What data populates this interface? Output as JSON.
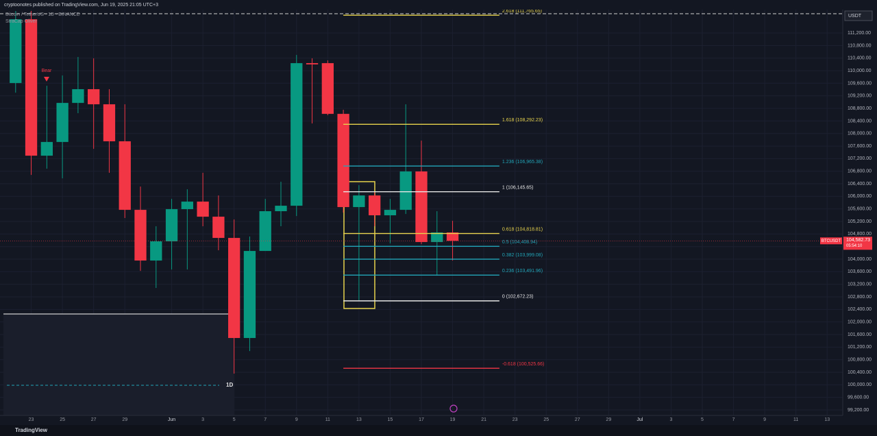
{
  "header": "cryptoonotes published on TradingView.com, Jun 19, 2025 21:05 UTC+3",
  "footer": "TradingView",
  "chart_data": {
    "type": "candlestick",
    "symbol_legend": "Bitcoin / TetherUS · 1D · BINANCE",
    "indicator_legend": "StraCap Oliver",
    "annotation": "Bear",
    "interval_label": "1D",
    "currency": "USDT",
    "up_color": "#089981",
    "down_color": "#f23645",
    "xlim": [
      "2025-05-21",
      "2025-07-14"
    ],
    "ylim": [
      99025,
      112250
    ],
    "grid": true,
    "dates": [
      "2025-05-22",
      "2025-05-23",
      "2025-05-24",
      "2025-05-25",
      "2025-05-26",
      "2025-05-27",
      "2025-05-28",
      "2025-05-29",
      "2025-05-30",
      "2025-05-31",
      "2025-06-01",
      "2025-06-02",
      "2025-06-03",
      "2025-06-04",
      "2025-06-05",
      "2025-06-06",
      "2025-06-07",
      "2025-06-08",
      "2025-06-09",
      "2025-06-10",
      "2025-06-11",
      "2025-06-12",
      "2025-06-13",
      "2025-06-14",
      "2025-06-15",
      "2025-06-16",
      "2025-06-17",
      "2025-06-18",
      "2025-06-19"
    ],
    "open": [
      109607,
      111636,
      107294,
      107730,
      108974,
      109411,
      108930,
      107752,
      105570,
      103956,
      104567,
      105592,
      105832,
      105352,
      104676,
      101490,
      104261,
      105527,
      105701,
      110240,
      110240,
      108625,
      105657,
      106028,
      105396,
      105570,
      106792,
      104545,
      104850
    ],
    "high": [
      111900,
      111900,
      109520,
      109847,
      110436,
      110393,
      109411,
      108930,
      106312,
      105047,
      105919,
      106225,
      106749,
      106028,
      105265,
      104720,
      105919,
      106465,
      110502,
      110393,
      110327,
      108756,
      106356,
      106138,
      105919,
      108930,
      107774,
      105527,
      105221
    ],
    "low": [
      109300,
      106683,
      106880,
      106574,
      108647,
      107512,
      106749,
      105309,
      103628,
      103083,
      103672,
      103672,
      105047,
      104283,
      100355,
      101075,
      104392,
      105047,
      105374,
      108320,
      108582,
      105483,
      102690,
      105047,
      104501,
      105439,
      104479,
      103475,
      103956
    ],
    "close": [
      111636,
      107294,
      107730,
      108974,
      109411,
      108930,
      107752,
      105570,
      103956,
      104567,
      105592,
      105832,
      105352,
      104676,
      101490,
      104261,
      105527,
      105701,
      110240,
      110200,
      108625,
      105657,
      106028,
      105396,
      105570,
      106792,
      104545,
      104850,
      104582.73
    ],
    "fib_levels": [
      {
        "value": 111765.65,
        "label": "2.618 (111,765.65)",
        "color": "#e8d44d"
      },
      {
        "value": 108292.23,
        "label": "1.618 (108,292.23)",
        "color": "#e8d44d"
      },
      {
        "value": 106965.38,
        "label": "1.236 (106,965.38)",
        "color": "#22a5b8"
      },
      {
        "value": 106145.65,
        "label": "1 (106,145.65)",
        "color": "#e6e6e6"
      },
      {
        "value": 104818.81,
        "label": "0.618 (104,818.81)",
        "color": "#e8d44d"
      },
      {
        "value": 104408.94,
        "label": "0.5 (104,408.94)",
        "color": "#22a5b8"
      },
      {
        "value": 103999.08,
        "label": "0.382 (103,999.08)",
        "color": "#22a5b8"
      },
      {
        "value": 103491.96,
        "label": "0.236 (103,491.96)",
        "color": "#22a5b8"
      },
      {
        "value": 102672.23,
        "label": "0 (102,672.23)",
        "color": "#e6e6e6"
      },
      {
        "value": 100525.66,
        "label": "-0.618 (100,525.66)",
        "color": "#f23645"
      }
    ],
    "fib_range": [
      "2025-06-12",
      "2025-06-22"
    ],
    "last_price": {
      "value": 104582.73,
      "label": "104,582.73",
      "symbol": "BTCUSDT",
      "countdown": "05:54:10"
    },
    "xticks": [
      {
        "value": "2025-05-23",
        "label": "23"
      },
      {
        "value": "2025-05-25",
        "label": "25"
      },
      {
        "value": "2025-05-27",
        "label": "27"
      },
      {
        "value": "2025-05-29",
        "label": "29"
      },
      {
        "value": "2025-06-01",
        "label": "Jun"
      },
      {
        "value": "2025-06-03",
        "label": "3"
      },
      {
        "value": "2025-06-05",
        "label": "5"
      },
      {
        "value": "2025-06-07",
        "label": "7"
      },
      {
        "value": "2025-06-09",
        "label": "9"
      },
      {
        "value": "2025-06-11",
        "label": "11"
      },
      {
        "value": "2025-06-13",
        "label": "13"
      },
      {
        "value": "2025-06-15",
        "label": "15"
      },
      {
        "value": "2025-06-17",
        "label": "17"
      },
      {
        "value": "2025-06-19",
        "label": "19"
      },
      {
        "value": "2025-06-21",
        "label": "21"
      },
      {
        "value": "2025-06-23",
        "label": "23"
      },
      {
        "value": "2025-06-25",
        "label": "25"
      },
      {
        "value": "2025-06-27",
        "label": "27"
      },
      {
        "value": "2025-06-29",
        "label": "29"
      },
      {
        "value": "2025-07-01",
        "label": "Jul"
      },
      {
        "value": "2025-07-03",
        "label": "3"
      },
      {
        "value": "2025-07-05",
        "label": "5"
      },
      {
        "value": "2025-07-07",
        "label": "7"
      },
      {
        "value": "2025-07-09",
        "label": "9"
      },
      {
        "value": "2025-07-11",
        "label": "11"
      },
      {
        "value": "2025-07-13",
        "label": "13"
      }
    ],
    "yticks": [
      {
        "value": 99200,
        "label": "99,200.00"
      },
      {
        "value": 99600,
        "label": "99,600.00"
      },
      {
        "value": 100000,
        "label": "100,000.00"
      },
      {
        "value": 100400,
        "label": "100,400.00"
      },
      {
        "value": 100800,
        "label": "100,800.00"
      },
      {
        "value": 101200,
        "label": "101,200.00"
      },
      {
        "value": 101600,
        "label": "101,600.00"
      },
      {
        "value": 102000,
        "label": "102,000.00"
      },
      {
        "value": 102400,
        "label": "102,400.00"
      },
      {
        "value": 102800,
        "label": "102,800.00"
      },
      {
        "value": 103200,
        "label": "103,200.00"
      },
      {
        "value": 103600,
        "label": "103,600.00"
      },
      {
        "value": 104000,
        "label": "104,000.00"
      },
      {
        "value": 104400,
        "label": "104,400.00"
      },
      {
        "value": 104800,
        "label": "104,800.00"
      },
      {
        "value": 105200,
        "label": "105,200.00"
      },
      {
        "value": 105600,
        "label": "105,600.00"
      },
      {
        "value": 106000,
        "label": "106,000.00"
      },
      {
        "value": 106400,
        "label": "106,400.00"
      },
      {
        "value": 106800,
        "label": "106,800.00"
      },
      {
        "value": 107200,
        "label": "107,200.00"
      },
      {
        "value": 107600,
        "label": "107,600.00"
      },
      {
        "value": 108000,
        "label": "108,000.00"
      },
      {
        "value": 108400,
        "label": "108,400.00"
      },
      {
        "value": 108800,
        "label": "108,800.00"
      },
      {
        "value": 109200,
        "label": "109,200.00"
      },
      {
        "value": 109600,
        "label": "109,600.00"
      },
      {
        "value": 110000,
        "label": "110,000.00"
      },
      {
        "value": 110400,
        "label": "110,400.00"
      },
      {
        "value": 110800,
        "label": "110,800.00"
      },
      {
        "value": 111200,
        "label": "111,200.00"
      }
    ]
  }
}
